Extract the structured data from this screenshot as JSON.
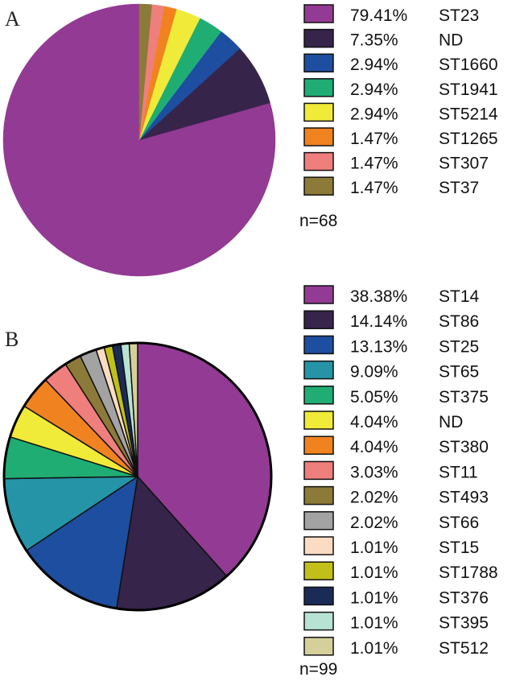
{
  "chart_data": [
    {
      "type": "pie",
      "panel_label": "A",
      "n_label": "n=68",
      "start": "12 o'clock, counter-clockwise",
      "slices": [
        {
          "pct_label": "79.41%",
          "name": "ST23",
          "value": 79.41,
          "color": "#933a94"
        },
        {
          "pct_label": "7.35%",
          "name": "ND",
          "value": 7.35,
          "color": "#36244a"
        },
        {
          "pct_label": "2.94%",
          "name": "ST1660",
          "value": 2.94,
          "color": "#1d4ea0"
        },
        {
          "pct_label": "2.94%",
          "name": "ST1941",
          "value": 2.94,
          "color": "#1fad74"
        },
        {
          "pct_label": "2.94%",
          "name": "ST5214",
          "value": 2.94,
          "color": "#f0ea39"
        },
        {
          "pct_label": "1.47%",
          "name": "ST1265",
          "value": 1.47,
          "color": "#f0831f"
        },
        {
          "pct_label": "1.47%",
          "name": "ST307",
          "value": 1.47,
          "color": "#ef7f7c"
        },
        {
          "pct_label": "1.47%",
          "name": "ST37",
          "value": 1.47,
          "color": "#8c7a39"
        }
      ]
    },
    {
      "type": "pie",
      "panel_label": "B",
      "n_label": "n=99",
      "start": "12 o'clock, clockwise",
      "slices": [
        {
          "pct_label": "38.38%",
          "name": "ST14",
          "value": 38.38,
          "color": "#933a94"
        },
        {
          "pct_label": "14.14%",
          "name": "ST86",
          "value": 14.14,
          "color": "#36244a"
        },
        {
          "pct_label": "13.13%",
          "name": "ST25",
          "value": 13.13,
          "color": "#1d4ea0"
        },
        {
          "pct_label": "9.09%",
          "name": "ST65",
          "value": 9.09,
          "color": "#2594a6"
        },
        {
          "pct_label": "5.05%",
          "name": "ST375",
          "value": 5.05,
          "color": "#1fad74"
        },
        {
          "pct_label": "4.04%",
          "name": "ND",
          "value": 4.04,
          "color": "#f0ea39"
        },
        {
          "pct_label": "4.04%",
          "name": "ST380",
          "value": 4.04,
          "color": "#f0831f"
        },
        {
          "pct_label": "3.03%",
          "name": "ST11",
          "value": 3.03,
          "color": "#ef7f7c"
        },
        {
          "pct_label": "2.02%",
          "name": "ST493",
          "value": 2.02,
          "color": "#8c7a39"
        },
        {
          "pct_label": "2.02%",
          "name": "ST66",
          "value": 2.02,
          "color": "#a3a3a3"
        },
        {
          "pct_label": "1.01%",
          "name": "ST15",
          "value": 1.01,
          "color": "#fbdcc3"
        },
        {
          "pct_label": "1.01%",
          "name": "ST1788",
          "value": 1.01,
          "color": "#c1c01b"
        },
        {
          "pct_label": "1.01%",
          "name": "ST376",
          "value": 1.01,
          "color": "#1a2b56"
        },
        {
          "pct_label": "1.01%",
          "name": "ST395",
          "value": 1.01,
          "color": "#b6e3d3"
        },
        {
          "pct_label": "1.01%",
          "name": "ST512",
          "value": 1.01,
          "color": "#d5d09a"
        }
      ]
    }
  ]
}
